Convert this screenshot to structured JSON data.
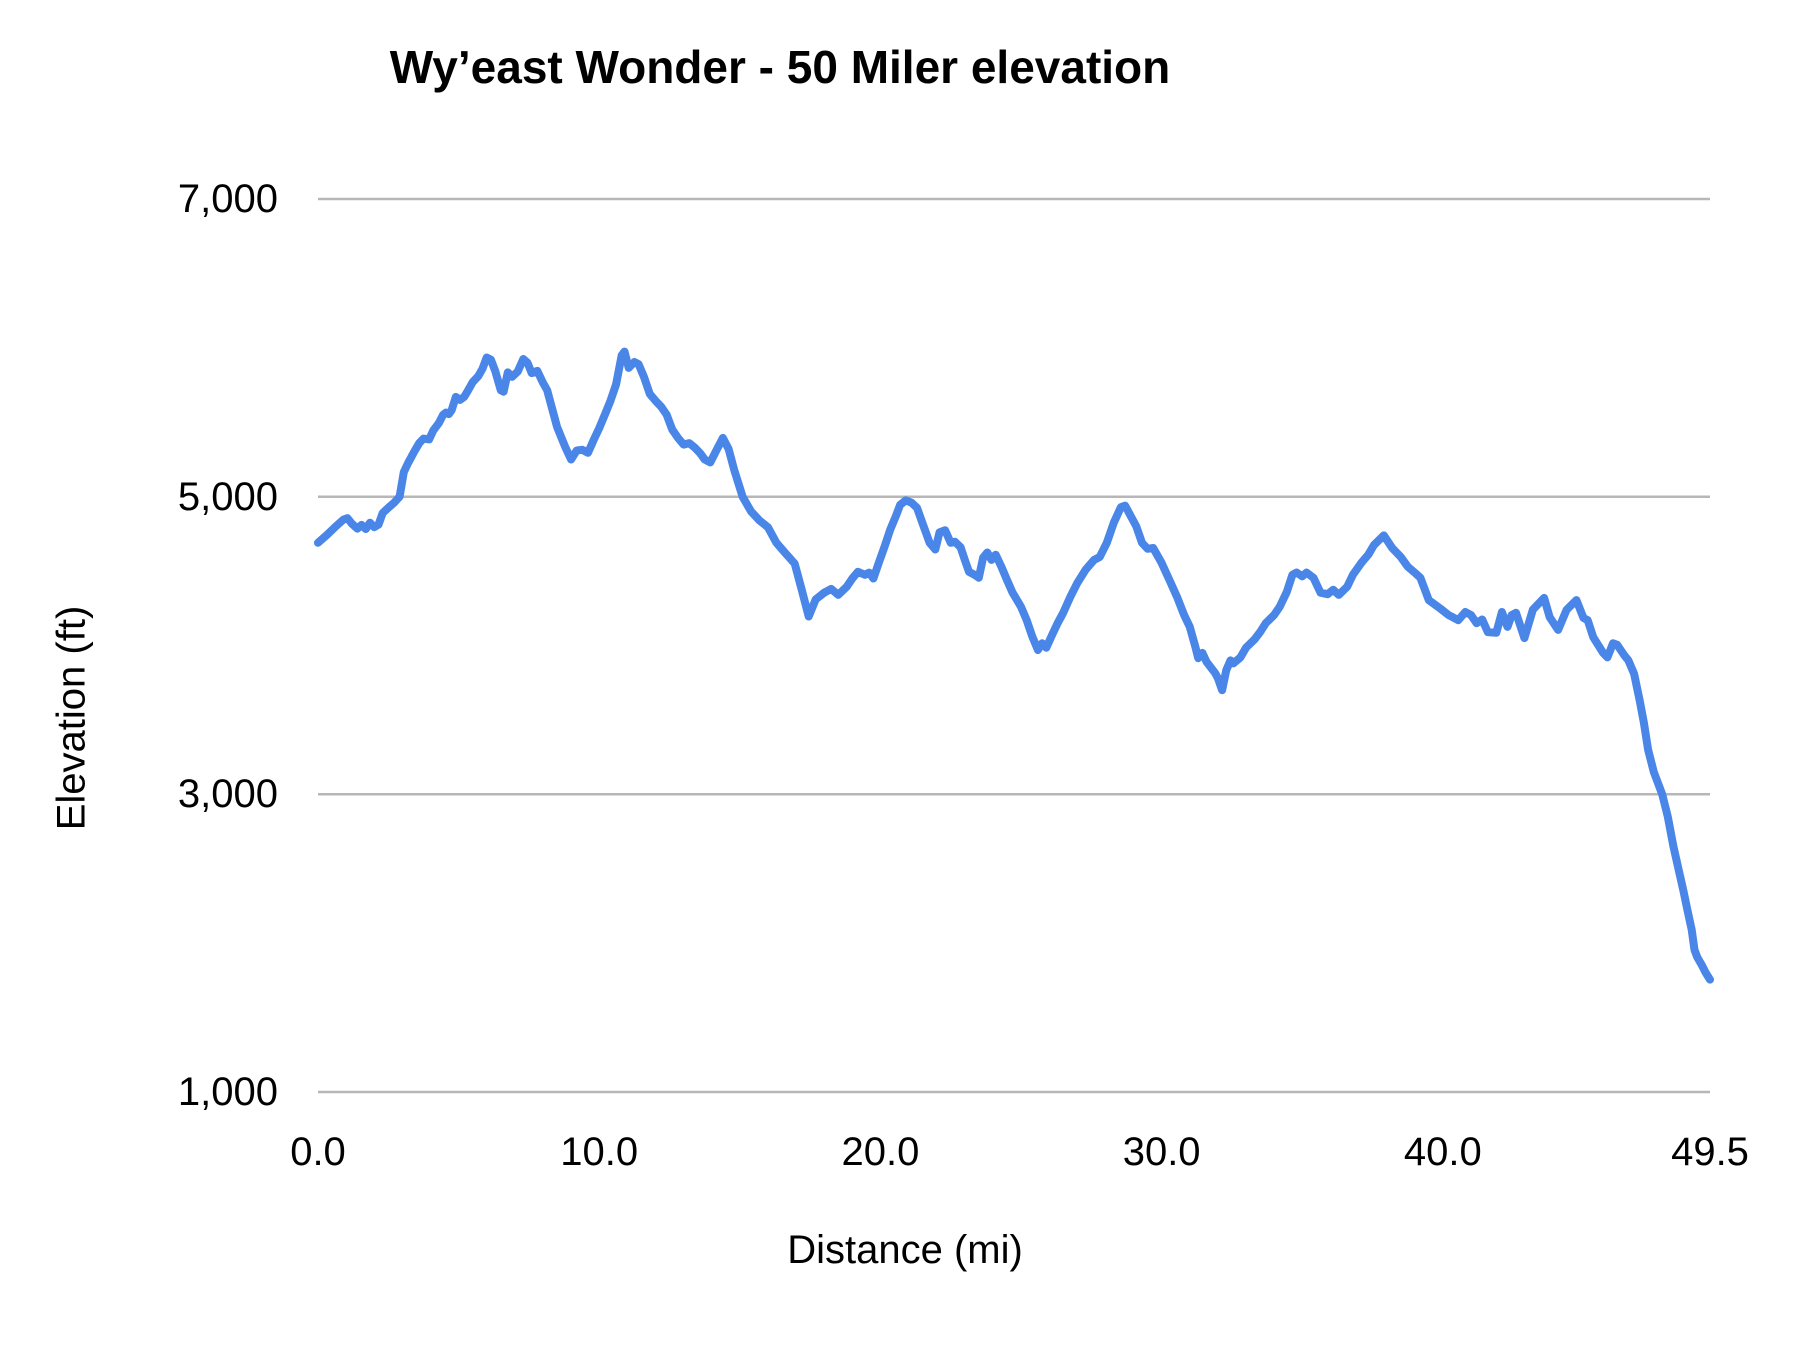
{
  "chart_data": {
    "type": "line",
    "title": "Wy’east Wonder - 50 Miler elevation",
    "xlabel": "Distance (mi)",
    "ylabel": "Elevation (ft)",
    "xlim": [
      0,
      49.5
    ],
    "ylim": [
      1000,
      7000
    ],
    "grid": true,
    "legend_position": "none",
    "line_color": "#4a86e8",
    "grid_color": "#b7b7b7",
    "background_color": "#ffffff",
    "text_color": "#000000",
    "x_ticks": [
      {
        "value": 0,
        "label": "0.0"
      },
      {
        "value": 10,
        "label": "10.0"
      },
      {
        "value": 20,
        "label": "20.0"
      },
      {
        "value": 30,
        "label": "30.0"
      },
      {
        "value": 40,
        "label": "40.0"
      },
      {
        "value": 49.5,
        "label": "49.5"
      }
    ],
    "y_ticks": [
      {
        "value": 1000,
        "label": "1,000"
      },
      {
        "value": 3000,
        "label": "3,000"
      },
      {
        "value": 5000,
        "label": "5,000"
      },
      {
        "value": 7000,
        "label": "7,000"
      }
    ],
    "series": [
      {
        "name": "Elevation (ft)",
        "points": [
          [
            0.0,
            4690
          ],
          [
            0.3,
            4740
          ],
          [
            0.6,
            4795
          ],
          [
            0.9,
            4845
          ],
          [
            1.05,
            4855
          ],
          [
            1.2,
            4820
          ],
          [
            1.4,
            4785
          ],
          [
            1.55,
            4810
          ],
          [
            1.7,
            4782
          ],
          [
            1.85,
            4825
          ],
          [
            2.0,
            4795
          ],
          [
            2.15,
            4812
          ],
          [
            2.3,
            4890
          ],
          [
            2.5,
            4925
          ],
          [
            2.7,
            4958
          ],
          [
            2.9,
            5000
          ],
          [
            3.05,
            5165
          ],
          [
            3.2,
            5225
          ],
          [
            3.4,
            5295
          ],
          [
            3.6,
            5360
          ],
          [
            3.75,
            5390
          ],
          [
            3.95,
            5385
          ],
          [
            4.1,
            5445
          ],
          [
            4.3,
            5495
          ],
          [
            4.45,
            5550
          ],
          [
            4.55,
            5565
          ],
          [
            4.65,
            5555
          ],
          [
            4.75,
            5580
          ],
          [
            4.9,
            5670
          ],
          [
            5.05,
            5650
          ],
          [
            5.2,
            5670
          ],
          [
            5.35,
            5718
          ],
          [
            5.5,
            5770
          ],
          [
            5.7,
            5810
          ],
          [
            5.85,
            5860
          ],
          [
            6.0,
            5935
          ],
          [
            6.15,
            5920
          ],
          [
            6.3,
            5845
          ],
          [
            6.5,
            5715
          ],
          [
            6.6,
            5705
          ],
          [
            6.75,
            5835
          ],
          [
            6.9,
            5805
          ],
          [
            7.1,
            5840
          ],
          [
            7.3,
            5925
          ],
          [
            7.45,
            5900
          ],
          [
            7.6,
            5830
          ],
          [
            7.8,
            5845
          ],
          [
            8.0,
            5765
          ],
          [
            8.15,
            5715
          ],
          [
            8.3,
            5610
          ],
          [
            8.5,
            5470
          ],
          [
            8.65,
            5400
          ],
          [
            8.8,
            5330
          ],
          [
            9.0,
            5250
          ],
          [
            9.2,
            5310
          ],
          [
            9.4,
            5315
          ],
          [
            9.6,
            5295
          ],
          [
            9.8,
            5380
          ],
          [
            10.0,
            5460
          ],
          [
            10.2,
            5550
          ],
          [
            10.4,
            5645
          ],
          [
            10.6,
            5755
          ],
          [
            10.8,
            5950
          ],
          [
            10.9,
            5975
          ],
          [
            11.05,
            5865
          ],
          [
            11.25,
            5905
          ],
          [
            11.4,
            5890
          ],
          [
            11.6,
            5800
          ],
          [
            11.8,
            5690
          ],
          [
            12.0,
            5645
          ],
          [
            12.2,
            5605
          ],
          [
            12.4,
            5550
          ],
          [
            12.6,
            5450
          ],
          [
            12.8,
            5395
          ],
          [
            13.0,
            5350
          ],
          [
            13.2,
            5360
          ],
          [
            13.4,
            5330
          ],
          [
            13.6,
            5290
          ],
          [
            13.75,
            5250
          ],
          [
            13.95,
            5230
          ],
          [
            14.15,
            5305
          ],
          [
            14.4,
            5395
          ],
          [
            14.6,
            5320
          ],
          [
            14.8,
            5180
          ],
          [
            15.1,
            5000
          ],
          [
            15.4,
            4900
          ],
          [
            15.7,
            4840
          ],
          [
            16.0,
            4795
          ],
          [
            16.3,
            4690
          ],
          [
            16.6,
            4625
          ],
          [
            16.95,
            4550
          ],
          [
            17.2,
            4375
          ],
          [
            17.45,
            4195
          ],
          [
            17.7,
            4310
          ],
          [
            18.0,
            4355
          ],
          [
            18.25,
            4380
          ],
          [
            18.5,
            4340
          ],
          [
            18.8,
            4395
          ],
          [
            19.0,
            4450
          ],
          [
            19.2,
            4495
          ],
          [
            19.45,
            4475
          ],
          [
            19.6,
            4490
          ],
          [
            19.75,
            4450
          ],
          [
            19.95,
            4560
          ],
          [
            20.15,
            4665
          ],
          [
            20.35,
            4780
          ],
          [
            20.55,
            4870
          ],
          [
            20.7,
            4945
          ],
          [
            20.9,
            4975
          ],
          [
            21.1,
            4960
          ],
          [
            21.3,
            4925
          ],
          [
            21.5,
            4820
          ],
          [
            21.75,
            4690
          ],
          [
            21.95,
            4645
          ],
          [
            22.1,
            4760
          ],
          [
            22.3,
            4775
          ],
          [
            22.5,
            4690
          ],
          [
            22.65,
            4697
          ],
          [
            22.85,
            4660
          ],
          [
            23.0,
            4575
          ],
          [
            23.15,
            4495
          ],
          [
            23.35,
            4475
          ],
          [
            23.5,
            4455
          ],
          [
            23.65,
            4590
          ],
          [
            23.8,
            4625
          ],
          [
            23.95,
            4575
          ],
          [
            24.1,
            4610
          ],
          [
            24.3,
            4530
          ],
          [
            24.5,
            4440
          ],
          [
            24.7,
            4355
          ],
          [
            25.0,
            4260
          ],
          [
            25.2,
            4170
          ],
          [
            25.4,
            4060
          ],
          [
            25.6,
            3970
          ],
          [
            25.75,
            4015
          ],
          [
            25.9,
            3985
          ],
          [
            26.1,
            4070
          ],
          [
            26.3,
            4150
          ],
          [
            26.5,
            4220
          ],
          [
            26.75,
            4325
          ],
          [
            27.0,
            4420
          ],
          [
            27.3,
            4510
          ],
          [
            27.6,
            4575
          ],
          [
            27.8,
            4595
          ],
          [
            28.05,
            4690
          ],
          [
            28.3,
            4825
          ],
          [
            28.55,
            4930
          ],
          [
            28.7,
            4940
          ],
          [
            28.9,
            4870
          ],
          [
            29.1,
            4800
          ],
          [
            29.3,
            4690
          ],
          [
            29.5,
            4650
          ],
          [
            29.7,
            4655
          ],
          [
            30.0,
            4555
          ],
          [
            30.3,
            4430
          ],
          [
            30.55,
            4325
          ],
          [
            30.8,
            4205
          ],
          [
            31.0,
            4125
          ],
          [
            31.2,
            3990
          ],
          [
            31.3,
            3915
          ],
          [
            31.45,
            3950
          ],
          [
            31.6,
            3890
          ],
          [
            31.9,
            3815
          ],
          [
            32.0,
            3780
          ],
          [
            32.15,
            3700
          ],
          [
            32.3,
            3835
          ],
          [
            32.45,
            3900
          ],
          [
            32.55,
            3880
          ],
          [
            32.8,
            3920
          ],
          [
            33.0,
            3985
          ],
          [
            33.3,
            4040
          ],
          [
            33.5,
            4090
          ],
          [
            33.7,
            4150
          ],
          [
            34.0,
            4205
          ],
          [
            34.2,
            4260
          ],
          [
            34.45,
            4360
          ],
          [
            34.65,
            4475
          ],
          [
            34.8,
            4490
          ],
          [
            35.0,
            4465
          ],
          [
            35.15,
            4490
          ],
          [
            35.4,
            4455
          ],
          [
            35.65,
            4355
          ],
          [
            35.9,
            4345
          ],
          [
            36.1,
            4375
          ],
          [
            36.3,
            4340
          ],
          [
            36.6,
            4395
          ],
          [
            36.8,
            4475
          ],
          [
            37.1,
            4555
          ],
          [
            37.35,
            4610
          ],
          [
            37.55,
            4675
          ],
          [
            37.9,
            4740
          ],
          [
            38.2,
            4655
          ],
          [
            38.5,
            4595
          ],
          [
            38.75,
            4530
          ],
          [
            39.0,
            4490
          ],
          [
            39.2,
            4455
          ],
          [
            39.5,
            4305
          ],
          [
            39.9,
            4250
          ],
          [
            40.2,
            4205
          ],
          [
            40.55,
            4170
          ],
          [
            40.8,
            4225
          ],
          [
            41.0,
            4205
          ],
          [
            41.2,
            4150
          ],
          [
            41.4,
            4175
          ],
          [
            41.6,
            4090
          ],
          [
            41.9,
            4085
          ],
          [
            42.1,
            4225
          ],
          [
            42.3,
            4125
          ],
          [
            42.45,
            4205
          ],
          [
            42.6,
            4220
          ],
          [
            42.9,
            4050
          ],
          [
            43.2,
            4240
          ],
          [
            43.6,
            4320
          ],
          [
            43.8,
            4190
          ],
          [
            44.1,
            4105
          ],
          [
            44.4,
            4240
          ],
          [
            44.75,
            4305
          ],
          [
            45.0,
            4185
          ],
          [
            45.15,
            4170
          ],
          [
            45.35,
            4055
          ],
          [
            45.7,
            3950
          ],
          [
            45.85,
            3920
          ],
          [
            46.05,
            4015
          ],
          [
            46.2,
            4005
          ],
          [
            46.45,
            3935
          ],
          [
            46.6,
            3900
          ],
          [
            46.8,
            3810
          ],
          [
            47.0,
            3630
          ],
          [
            47.15,
            3480
          ],
          [
            47.3,
            3300
          ],
          [
            47.5,
            3150
          ],
          [
            47.8,
            3000
          ],
          [
            48.0,
            2850
          ],
          [
            48.2,
            2650
          ],
          [
            48.4,
            2480
          ],
          [
            48.55,
            2355
          ],
          [
            48.7,
            2220
          ],
          [
            48.85,
            2090
          ],
          [
            48.95,
            1955
          ],
          [
            49.05,
            1905
          ],
          [
            49.2,
            1855
          ],
          [
            49.35,
            1800
          ],
          [
            49.5,
            1755
          ]
        ]
      }
    ]
  }
}
